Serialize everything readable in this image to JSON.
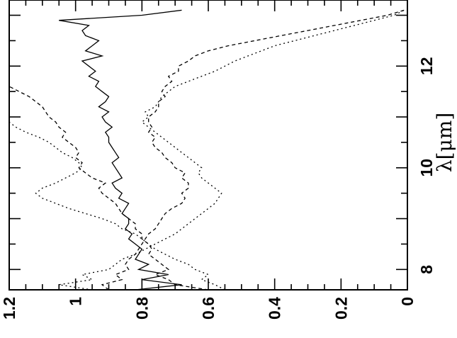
{
  "chart_data": {
    "type": "line",
    "orientation": "rotated-90",
    "xlabel": "λ[μm]",
    "ylabel": "",
    "title": "",
    "xlim": [
      7.6,
      13.3
    ],
    "ylim": [
      0,
      1.2
    ],
    "x_ticks": [
      8,
      10,
      12
    ],
    "x_tick_labels": [
      "8",
      "10",
      "12"
    ],
    "y_ticks": [
      0,
      0.2,
      0.4,
      0.6,
      0.8,
      1.0,
      1.2
    ],
    "y_tick_labels": [
      "0",
      "0.2",
      "0.4",
      "0.6",
      "0.8",
      "1",
      "1.2"
    ],
    "grid": false,
    "legend": "none",
    "series": [
      {
        "style": "solid",
        "color": "#000000",
        "x": [
          7.6,
          7.7,
          7.8,
          7.9,
          8.0,
          8.1,
          8.2,
          8.3,
          8.4,
          8.5,
          8.6,
          8.7,
          8.8,
          8.9,
          9.0,
          9.1,
          9.2,
          9.3,
          9.4,
          9.5,
          9.6,
          9.7,
          9.8,
          9.9,
          10.0,
          10.1,
          10.2,
          10.3,
          10.4,
          10.5,
          10.6,
          10.7,
          10.8,
          10.9,
          11.0,
          11.1,
          11.2,
          11.3,
          11.4,
          11.5,
          11.6,
          11.7,
          11.8,
          11.9,
          12.0,
          12.1,
          12.2,
          12.3,
          12.4,
          12.5,
          12.6,
          12.7,
          12.8,
          12.9,
          13.0,
          13.1
        ],
        "y": [
          0.82,
          0.68,
          0.8,
          0.72,
          0.81,
          0.78,
          0.82,
          0.81,
          0.8,
          0.82,
          0.84,
          0.83,
          0.85,
          0.84,
          0.84,
          0.86,
          0.85,
          0.84,
          0.87,
          0.86,
          0.88,
          0.89,
          0.86,
          0.87,
          0.88,
          0.89,
          0.87,
          0.88,
          0.89,
          0.9,
          0.9,
          0.91,
          0.89,
          0.91,
          0.92,
          0.9,
          0.93,
          0.91,
          0.9,
          0.92,
          0.94,
          0.93,
          0.96,
          0.94,
          0.96,
          0.98,
          0.92,
          0.97,
          0.95,
          0.93,
          0.97,
          0.98,
          0.96,
          1.05,
          0.8,
          0.68
        ]
      },
      {
        "style": "dashed",
        "color": "#000000",
        "x": [
          7.6,
          7.7,
          7.8,
          7.9,
          8.0,
          8.1,
          8.2,
          8.3,
          8.4,
          8.5,
          8.6,
          8.7,
          8.8,
          8.9,
          9.0,
          9.1,
          9.2,
          9.3,
          9.4,
          9.5,
          9.6,
          9.7,
          9.8,
          9.9,
          10.0,
          10.1,
          10.2,
          10.3,
          10.4,
          10.5,
          10.6,
          10.7,
          10.8,
          10.9,
          11.0,
          11.1,
          11.2,
          11.3,
          11.4,
          11.5,
          11.6,
          11.7,
          11.8,
          11.9,
          12.0,
          12.1,
          12.2,
          12.3,
          12.4,
          12.5,
          12.6,
          12.7,
          12.8,
          12.9,
          13.0,
          13.1
        ],
        "y": [
          0.6,
          0.7,
          0.72,
          0.76,
          0.72,
          0.74,
          0.76,
          0.78,
          0.77,
          0.78,
          0.8,
          0.8,
          0.82,
          0.82,
          0.84,
          0.86,
          0.87,
          0.88,
          0.9,
          0.92,
          0.93,
          0.91,
          0.95,
          0.97,
          0.99,
          0.98,
          1.0,
          0.99,
          1.0,
          1.02,
          1.04,
          1.03,
          1.05,
          1.06,
          1.08,
          1.09,
          1.1,
          1.12,
          1.14,
          1.17,
          1.2,
          1.2,
          1.2,
          1.2,
          1.2,
          1.2,
          1.2,
          1.2,
          1.2,
          1.2,
          1.2,
          1.2,
          1.2,
          1.2,
          1.2,
          1.2
        ]
      },
      {
        "style": "dashed",
        "color": "#000000",
        "x": [
          7.6,
          7.7,
          7.8,
          7.9,
          8.0,
          8.1,
          8.2,
          8.3,
          8.4,
          8.5,
          8.6,
          8.7,
          8.8,
          8.9,
          9.0,
          9.1,
          9.2,
          9.3,
          9.4,
          9.5,
          9.6,
          9.7,
          9.8,
          9.9,
          10.0,
          10.1,
          10.2,
          10.3,
          10.4,
          10.5,
          10.6,
          10.7,
          10.8,
          10.9,
          11.0,
          11.1,
          11.2,
          11.3,
          11.4,
          11.5,
          11.6,
          11.7,
          11.8,
          11.9,
          12.0,
          12.1,
          12.2,
          12.3,
          12.4,
          12.5,
          12.6,
          12.7,
          12.8,
          12.9,
          13.0,
          13.1
        ],
        "y": [
          0.9,
          0.92,
          0.86,
          0.88,
          0.84,
          0.85,
          0.84,
          0.82,
          0.81,
          0.8,
          0.79,
          0.78,
          0.76,
          0.75,
          0.74,
          0.73,
          0.71,
          0.68,
          0.67,
          0.68,
          0.66,
          0.66,
          0.68,
          0.67,
          0.7,
          0.71,
          0.73,
          0.74,
          0.76,
          0.77,
          0.76,
          0.78,
          0.77,
          0.78,
          0.78,
          0.76,
          0.75,
          0.75,
          0.73,
          0.74,
          0.73,
          0.71,
          0.72,
          0.69,
          0.69,
          0.66,
          0.64,
          0.6,
          0.54,
          0.46,
          0.38,
          0.3,
          0.22,
          0.14,
          0.06,
          0.01
        ]
      },
      {
        "style": "dotted",
        "color": "#000000",
        "x": [
          7.6,
          7.7,
          7.8,
          7.9,
          8.0,
          8.1,
          8.2,
          8.3,
          8.4,
          8.5,
          8.6,
          8.7,
          8.8,
          8.9,
          9.0,
          9.1,
          9.2,
          9.3,
          9.4,
          9.5,
          9.6,
          9.7,
          9.8,
          9.9,
          10.0,
          10.1,
          10.2,
          10.3,
          10.4,
          10.5,
          10.6,
          10.7,
          10.8,
          10.9,
          11.0,
          11.1,
          11.2,
          11.3,
          11.4,
          11.5,
          11.6,
          11.7,
          11.8,
          11.9,
          12.0,
          12.1,
          12.2,
          12.3,
          12.4,
          12.5,
          12.6,
          12.7,
          12.8,
          12.9,
          13.0,
          13.1
        ],
        "y": [
          0.55,
          0.58,
          0.62,
          0.6,
          0.64,
          0.66,
          0.7,
          0.73,
          0.76,
          0.78,
          0.8,
          0.82,
          0.86,
          0.88,
          0.92,
          0.97,
          1.02,
          1.06,
          1.1,
          1.12,
          1.1,
          1.06,
          1.03,
          1.0,
          0.98,
          0.99,
          1.01,
          1.04,
          1.06,
          1.08,
          1.11,
          1.15,
          1.18,
          1.2,
          1.2,
          1.2,
          1.2,
          1.2,
          1.2,
          1.2,
          1.2,
          1.2,
          1.2,
          1.2,
          1.2,
          1.2,
          1.2,
          1.2,
          1.2,
          1.2,
          1.2,
          1.2,
          1.2,
          1.2,
          1.2,
          1.2
        ]
      },
      {
        "style": "dotted",
        "color": "#000000",
        "x": [
          7.6,
          7.7,
          7.8,
          7.9,
          8.0,
          8.1,
          8.2,
          8.3,
          8.4,
          8.5,
          8.6,
          8.7,
          8.8,
          8.9,
          9.0,
          9.1,
          9.2,
          9.3,
          9.4,
          9.5,
          9.6,
          9.7,
          9.8,
          9.9,
          10.0,
          10.1,
          10.2,
          10.3,
          10.4,
          10.5,
          10.6,
          10.7,
          10.8,
          10.9,
          11.0,
          11.1,
          11.2,
          11.3,
          11.4,
          11.5,
          11.6,
          11.7,
          11.8,
          11.9,
          12.0,
          12.1,
          12.2,
          12.3,
          12.4,
          12.5,
          12.6,
          12.7,
          12.8,
          12.9,
          13.0,
          13.1
        ],
        "y": [
          0.95,
          1.05,
          0.95,
          0.98,
          0.9,
          0.88,
          0.86,
          0.82,
          0.79,
          0.76,
          0.73,
          0.7,
          0.68,
          0.66,
          0.64,
          0.62,
          0.6,
          0.58,
          0.57,
          0.56,
          0.58,
          0.6,
          0.62,
          0.63,
          0.62,
          0.64,
          0.66,
          0.68,
          0.7,
          0.72,
          0.74,
          0.76,
          0.78,
          0.8,
          0.78,
          0.79,
          0.76,
          0.75,
          0.74,
          0.72,
          0.7,
          0.66,
          0.62,
          0.58,
          0.55,
          0.52,
          0.48,
          0.44,
          0.4,
          0.34,
          0.28,
          0.22,
          0.16,
          0.1,
          0.04,
          0.01
        ]
      }
    ]
  }
}
